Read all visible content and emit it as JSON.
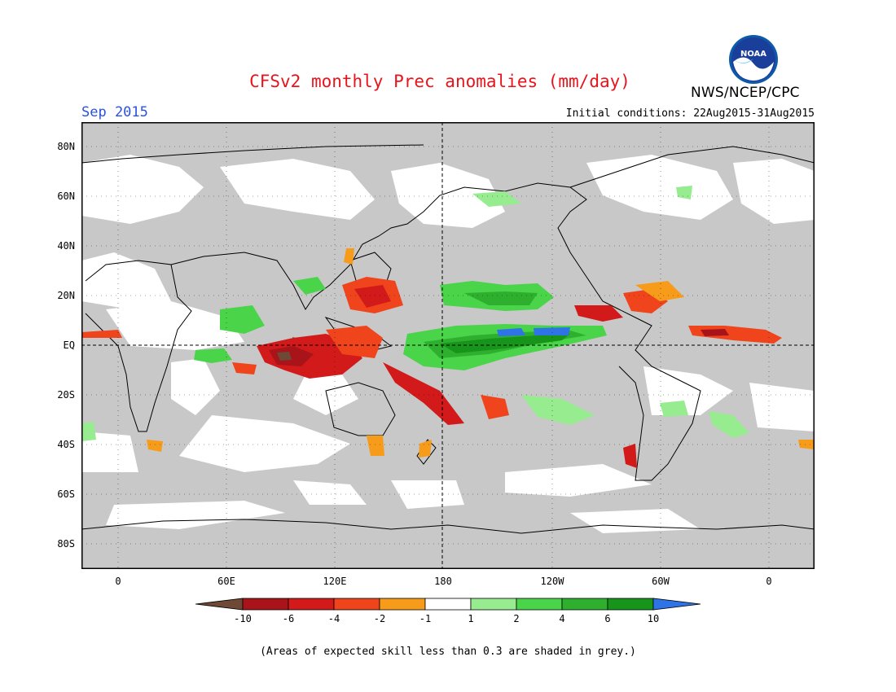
{
  "header": {
    "title": "CFSv2 monthly Prec anomalies (mm/day)",
    "month": "Sep 2015",
    "initial_conditions": "Initial conditions: 22Aug2015-31Aug2015",
    "organization": "NWS/NCEP/CPC",
    "logo_text": "NOAA"
  },
  "map": {
    "lat_labels": [
      "80N",
      "60N",
      "40N",
      "20N",
      "EQ",
      "20S",
      "40S",
      "60S",
      "80S"
    ],
    "lon_labels": [
      "0",
      "60E",
      "120E",
      "180",
      "120W",
      "60W",
      "0"
    ],
    "background_color": "#c8c8c8",
    "colors": {
      "dark_brown": "#6e4a36",
      "dark_red": "#a8141a",
      "red": "#d21a1a",
      "orange_red": "#f0441c",
      "orange": "#f79b1a",
      "white": "#ffffff",
      "light_green": "#96ec8e",
      "green": "#4ad44a",
      "mid_green": "#2eb02e",
      "dark_green": "#17951a",
      "blue": "#2f74e6"
    }
  },
  "colorbar": {
    "tick_labels": [
      "-10",
      "-6",
      "-4",
      "-2",
      "-1",
      "1",
      "2",
      "4",
      "6",
      "10"
    ],
    "colors": [
      "#6e4a36",
      "#a8141a",
      "#d21a1a",
      "#f0441c",
      "#f79b1a",
      "#ffffff",
      "#96ec8e",
      "#4ad44a",
      "#2eb02e",
      "#17951a",
      "#2f74e6"
    ]
  },
  "footer": {
    "note": "(Areas of expected skill less than 0.3 are shaded in grey.)"
  }
}
